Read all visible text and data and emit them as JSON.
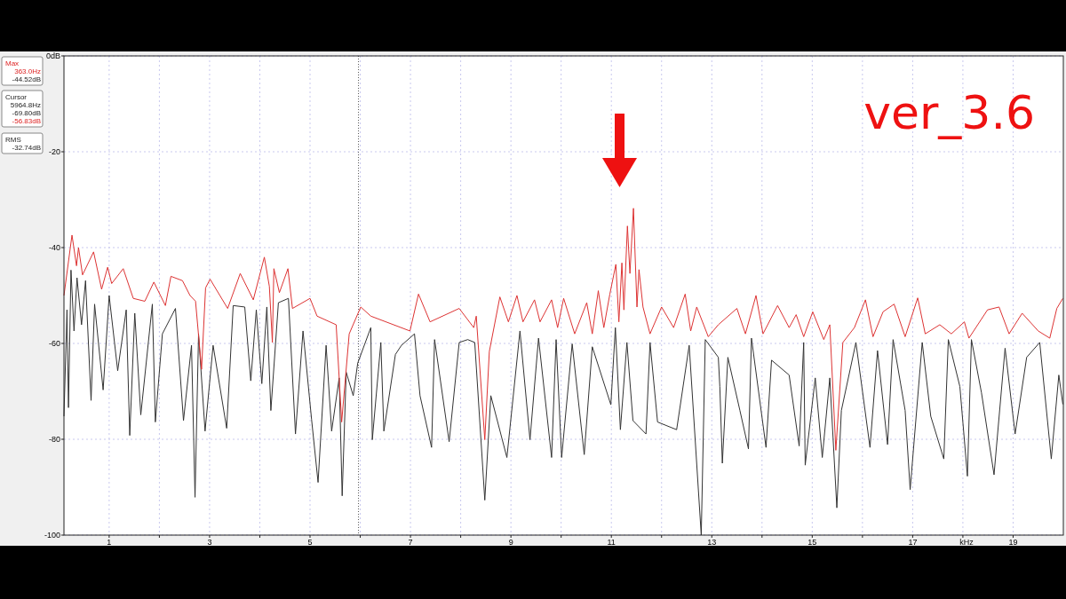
{
  "chart_data": {
    "type": "line",
    "xlabel": "kHz",
    "xlim": [
      0.1,
      20
    ],
    "ylim": [
      -100,
      0
    ],
    "xticks": [
      1,
      {
        "value": 2,
        "label": null
      },
      3,
      {
        "value": 4,
        "label": null
      },
      5,
      {
        "value": 6,
        "label": null
      },
      7,
      {
        "value": 8,
        "label": null
      },
      9,
      {
        "value": 10,
        "label": null
      },
      11,
      {
        "value": 12,
        "label": null
      },
      13,
      {
        "value": 14,
        "label": null
      },
      15,
      {
        "value": 16,
        "label": null
      },
      17,
      {
        "value": 18,
        "label": null
      },
      19
    ],
    "yticks": [
      {
        "value": 0,
        "label": "0dB"
      },
      -20,
      -40,
      -60,
      -80,
      -100
    ],
    "grid": true,
    "line_style": "solid",
    "ref_lines": [
      {
        "axis": "x",
        "value": 5.9648,
        "color": "#555555",
        "line_style": "dotted"
      }
    ],
    "annotations": [
      "ver_3.6",
      "Max",
      "363.0Hz",
      "-44.52dB",
      "Cursor",
      "5964.8Hz",
      "-69.80dB",
      "-56.83dB",
      "RMS",
      "-32.74dB"
    ],
    "series": [
      {
        "color": "#333333",
        "x": [
          0.1,
          0.16,
          0.19,
          0.24,
          0.3,
          0.36,
          0.45,
          0.53,
          0.64,
          0.71,
          0.88,
          1.0,
          1.17,
          1.34,
          1.41,
          1.51,
          1.63,
          1.86,
          1.92,
          2.06,
          2.32,
          2.48,
          2.64,
          2.71,
          2.78,
          2.91,
          3.07,
          3.34,
          3.47,
          3.7,
          3.82,
          3.93,
          4.04,
          4.14,
          4.22,
          4.37,
          4.57,
          4.71,
          4.86,
          5.03,
          5.16,
          5.32,
          5.43,
          5.58,
          5.64,
          5.72,
          5.86,
          5.95,
          6.21,
          6.24,
          6.41,
          6.47,
          6.7,
          6.82,
          7.08,
          7.19,
          7.42,
          7.48,
          7.77,
          7.97,
          8.14,
          8.28,
          8.48,
          8.6,
          8.92,
          9.18,
          9.38,
          9.55,
          9.81,
          9.9,
          10.01,
          10.22,
          10.46,
          10.62,
          10.99,
          11.08,
          11.18,
          11.31,
          11.43,
          11.69,
          11.77,
          11.92,
          12.3,
          12.55,
          12.79,
          12.87,
          13.13,
          13.16,
          13.21,
          13.32,
          13.56,
          13.73,
          13.79,
          14.08,
          14.19,
          14.54,
          14.74,
          14.83,
          14.86,
          15.06,
          15.2,
          15.35,
          15.49,
          15.58,
          15.87,
          16.15,
          16.3,
          16.5,
          16.61,
          16.85,
          16.95,
          17.19,
          17.36,
          17.62,
          17.71,
          17.94,
          18.09,
          18.17,
          18.37,
          18.62,
          18.84,
          19.04,
          19.27,
          19.53,
          19.76,
          19.91,
          19.99
        ],
        "values": [
          -75.2,
          -53.0,
          -73.4,
          -44.7,
          -57.4,
          -46.3,
          -56.1,
          -46.9,
          -71.9,
          -51.8,
          -69.7,
          -50.0,
          -65.7,
          -53.0,
          -79.2,
          -53.7,
          -74.9,
          -51.8,
          -76.4,
          -58.0,
          -52.7,
          -76.1,
          -60.4,
          -92.1,
          -58.0,
          -78.3,
          -60.4,
          -77.7,
          -52.1,
          -52.4,
          -67.8,
          -53.0,
          -68.4,
          -52.4,
          -74.0,
          -51.5,
          -50.6,
          -78.9,
          -57.4,
          -75.8,
          -89.0,
          -60.4,
          -78.3,
          -67.2,
          -91.8,
          -66.0,
          -70.9,
          -64.1,
          -56.7,
          -80.1,
          -59.8,
          -78.3,
          -62.3,
          -60.4,
          -58.0,
          -70.9,
          -81.7,
          -59.2,
          -80.5,
          -59.8,
          -59.2,
          -59.8,
          -92.7,
          -70.9,
          -83.8,
          -57.4,
          -80.1,
          -58.9,
          -83.8,
          -59.2,
          -83.8,
          -60.1,
          -83.2,
          -60.7,
          -72.8,
          -56.7,
          -78.0,
          -59.8,
          -76.1,
          -78.9,
          -59.8,
          -76.4,
          -78.0,
          -60.4,
          -100,
          -59.2,
          -62.9,
          -69.0,
          -85.0,
          -62.9,
          -74.0,
          -82.0,
          -58.9,
          -81.7,
          -63.5,
          -66.6,
          -81.4,
          -59.8,
          -85.4,
          -67.2,
          -83.8,
          -67.2,
          -94.3,
          -74.0,
          -59.8,
          -81.7,
          -61.5,
          -81.1,
          -59.2,
          -74.0,
          -90.5,
          -59.8,
          -75.2,
          -84.1,
          -59.2,
          -69.0,
          -87.7,
          -59.2,
          -70.3,
          -87.4,
          -61.0,
          -78.9,
          -62.9,
          -59.8,
          -84.1,
          -66.6,
          -72.7
        ]
      },
      {
        "color": "#dd3333",
        "x": [
          0.1,
          0.26,
          0.35,
          0.39,
          0.47,
          0.69,
          0.85,
          0.97,
          1.05,
          1.28,
          1.48,
          1.71,
          1.89,
          2.12,
          2.23,
          2.46,
          2.61,
          2.72,
          2.84,
          2.92,
          3.01,
          3.36,
          3.61,
          3.87,
          4.09,
          4.19,
          4.25,
          4.28,
          4.39,
          4.56,
          4.65,
          5.0,
          5.14,
          5.52,
          5.63,
          5.78,
          6.01,
          6.21,
          6.99,
          7.16,
          7.39,
          7.97,
          8.26,
          8.31,
          8.48,
          8.57,
          8.78,
          8.95,
          9.12,
          9.24,
          9.47,
          9.58,
          9.81,
          9.93,
          10.05,
          10.27,
          10.51,
          10.62,
          10.74,
          10.85,
          10.97,
          11.09,
          11.15,
          11.21,
          11.25,
          11.32,
          11.37,
          11.44,
          11.51,
          11.55,
          11.63,
          11.77,
          12.0,
          12.24,
          12.47,
          12.58,
          12.7,
          12.93,
          13.13,
          13.5,
          13.67,
          13.88,
          14.02,
          14.31,
          14.54,
          14.68,
          14.83,
          15.01,
          15.23,
          15.35,
          15.47,
          15.61,
          15.84,
          16.06,
          16.21,
          16.41,
          16.63,
          16.85,
          17.1,
          17.25,
          17.54,
          17.77,
          18.03,
          18.12,
          18.49,
          18.72,
          18.92,
          19.18,
          19.5,
          19.73,
          19.87,
          19.99
        ],
        "values": [
          -50.0,
          -37.4,
          -43.8,
          -40.0,
          -45.7,
          -40.9,
          -48.7,
          -44.1,
          -47.5,
          -44.4,
          -50.6,
          -51.2,
          -47.2,
          -52.1,
          -46.0,
          -46.9,
          -50.0,
          -51.2,
          -65.4,
          -48.4,
          -46.6,
          -52.7,
          -45.4,
          -50.9,
          -42.0,
          -48.1,
          -59.8,
          -44.4,
          -49.4,
          -44.4,
          -52.7,
          -50.6,
          -54.3,
          -56.1,
          -76.4,
          -58.0,
          -52.4,
          -54.3,
          -57.4,
          -49.7,
          -55.5,
          -52.7,
          -56.7,
          -54.3,
          -80.1,
          -61.7,
          -50.3,
          -55.5,
          -50.0,
          -55.5,
          -50.9,
          -55.5,
          -50.9,
          -56.7,
          -50.6,
          -58.0,
          -51.5,
          -58.0,
          -49.0,
          -56.7,
          -49.7,
          -43.5,
          -55.5,
          -43.2,
          -53.0,
          -35.5,
          -45.4,
          -31.8,
          -52.4,
          -44.6,
          -52.4,
          -58.0,
          -52.4,
          -56.7,
          -49.7,
          -57.4,
          -52.4,
          -58.6,
          -56.1,
          -52.7,
          -58.0,
          -50.0,
          -58.0,
          -52.1,
          -56.7,
          -54.0,
          -58.6,
          -53.4,
          -59.2,
          -56.1,
          -82.3,
          -59.8,
          -56.7,
          -50.9,
          -58.6,
          -53.4,
          -51.8,
          -58.6,
          -50.5,
          -58.0,
          -56.1,
          -58.0,
          -55.5,
          -58.9,
          -53.0,
          -52.4,
          -58.0,
          -53.7,
          -57.4,
          -58.9,
          -52.7,
          -50.6
        ]
      }
    ]
  }
}
